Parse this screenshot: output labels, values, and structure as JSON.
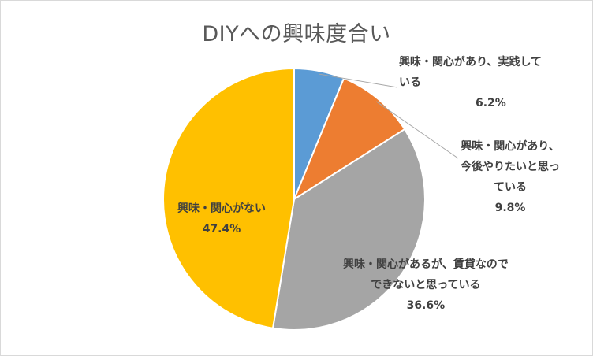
{
  "chart_data": {
    "type": "pie",
    "title": "DIYへの興味度合い",
    "slices": [
      {
        "label_lines": [
          "興味・関心があり、実践して",
          "いる"
        ],
        "value_text": "6.2%",
        "value": 6.2,
        "color": "#5b9bd5"
      },
      {
        "label_lines": [
          "興味・関心があり、",
          "今後やりたいと思っ",
          "ている"
        ],
        "value_text": "9.8%",
        "value": 9.8,
        "color": "#ed7d31"
      },
      {
        "label_lines": [
          "興味・関心があるが、賃貸なので",
          "できないと思っている"
        ],
        "value_text": "36.6%",
        "value": 36.6,
        "color": "#a5a5a5"
      },
      {
        "label_lines": [
          "興味・関心がない"
        ],
        "value_text": "47.4%",
        "value": 47.4,
        "color": "#ffc000"
      }
    ],
    "start_angle": "12 o'clock",
    "direction": "clockwise",
    "legend": "none",
    "leader_line_color": "#a6a6a6"
  }
}
